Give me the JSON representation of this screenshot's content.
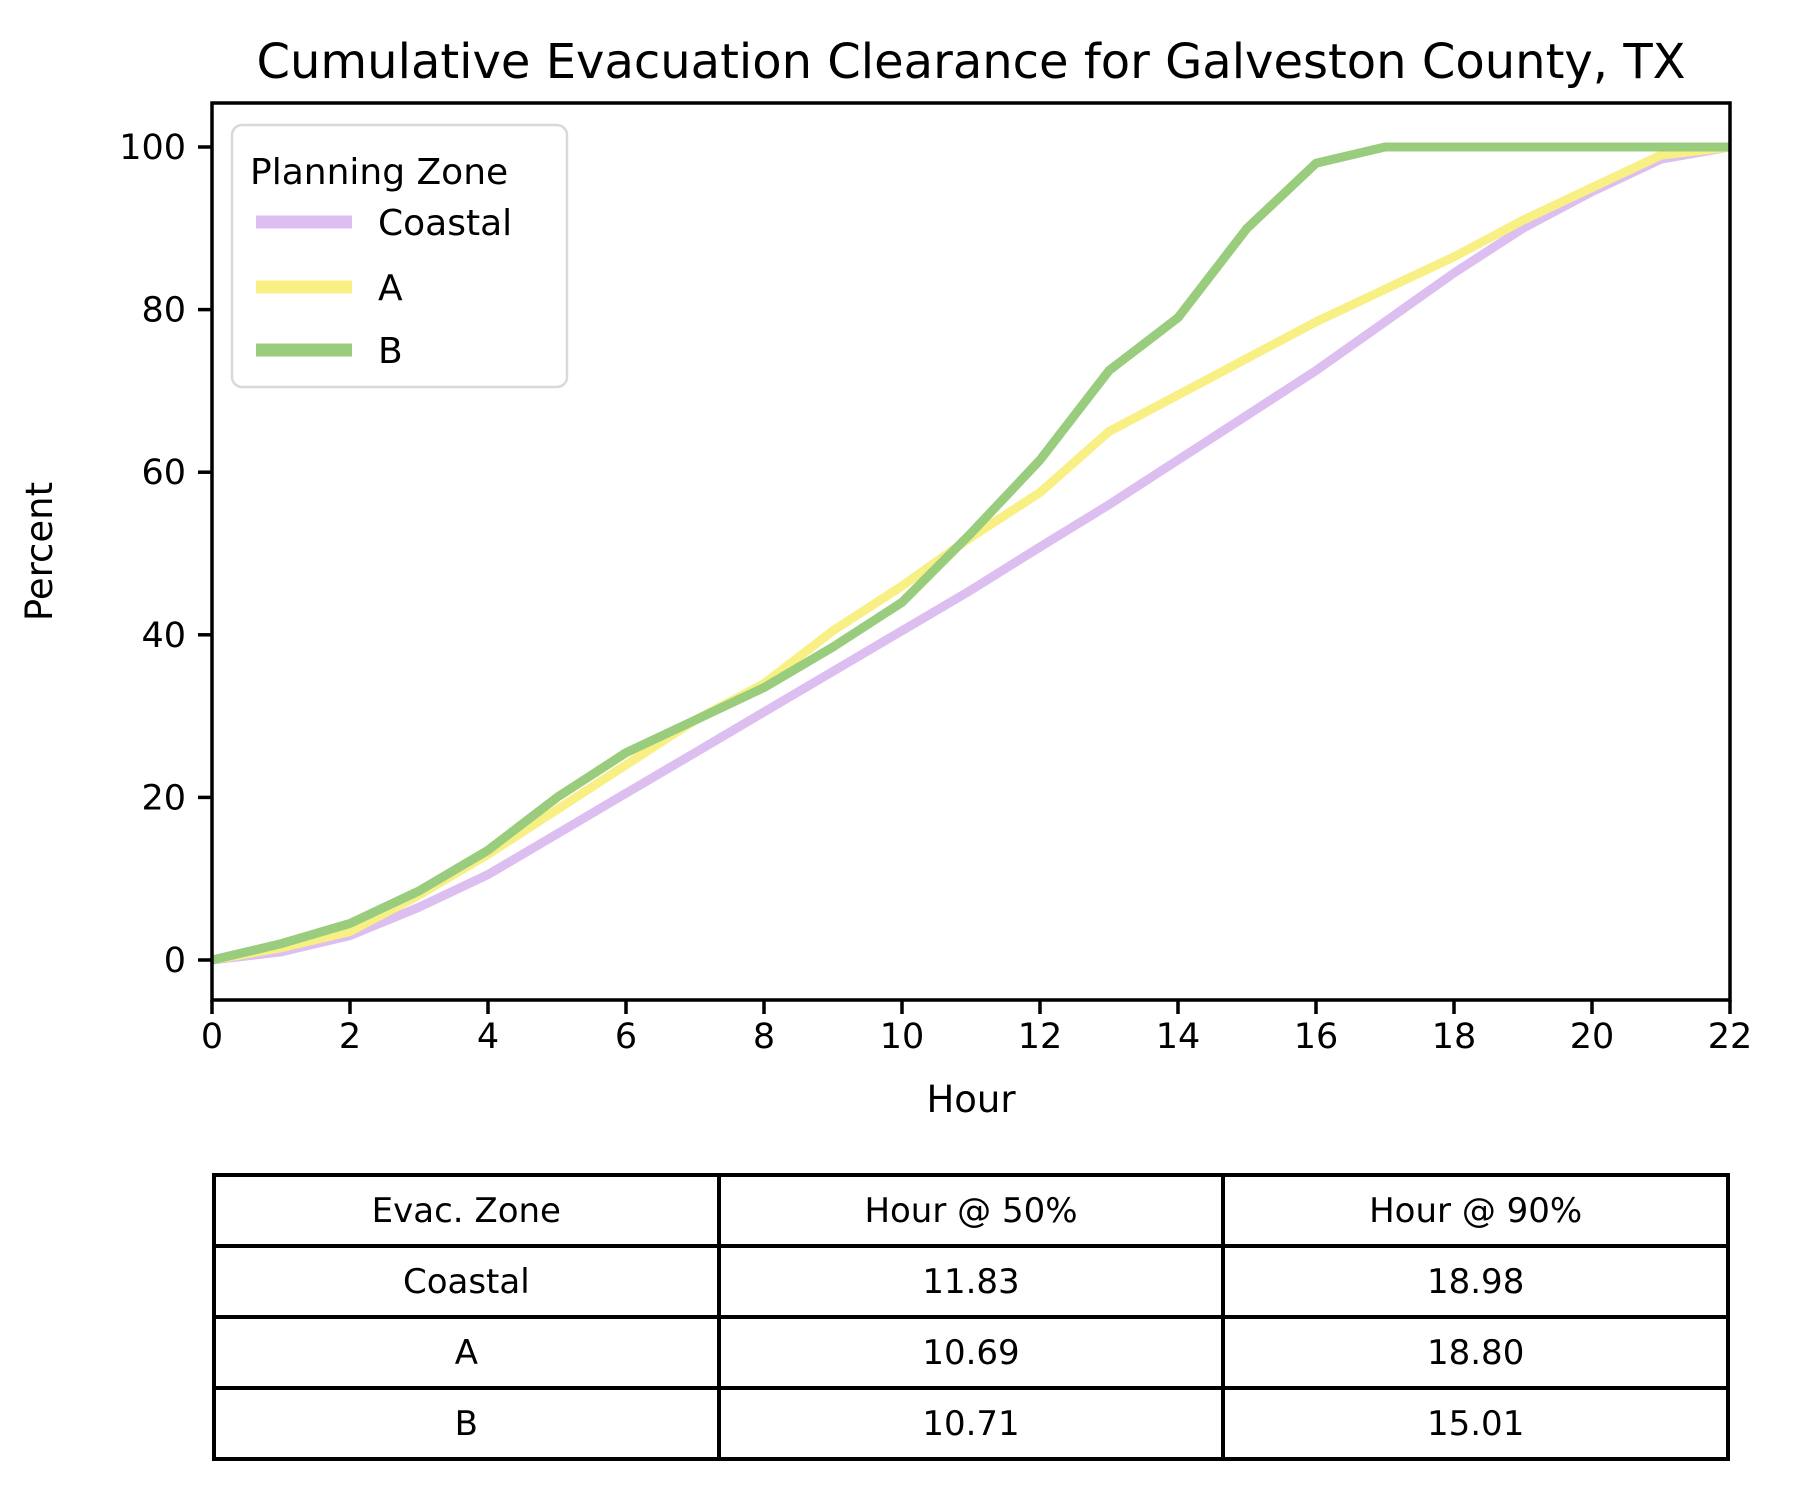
{
  "title": "Cumulative Evacuation Clearance for Galveston County, TX",
  "chart_data": {
    "type": "line",
    "title": "Cumulative Evacuation Clearance for Galveston County, TX",
    "xlabel": "Hour",
    "ylabel": "Percent",
    "xlim": [
      0,
      22
    ],
    "ylim": [
      0,
      100
    ],
    "x_ticks": [
      0,
      2,
      4,
      6,
      8,
      10,
      12,
      14,
      16,
      18,
      20,
      22
    ],
    "y_ticks": [
      0,
      20,
      40,
      60,
      80,
      100
    ],
    "grid": false,
    "legend": {
      "title": "Planning Zone",
      "position": "upper-left"
    },
    "x": [
      0,
      1,
      2,
      3,
      4,
      5,
      6,
      7,
      8,
      9,
      10,
      11,
      12,
      13,
      14,
      15,
      16,
      17,
      18,
      19,
      20,
      21,
      22
    ],
    "series": [
      {
        "name": "Coastal",
        "color": "#ddbef0",
        "values": [
          0,
          1,
          3,
          6.5,
          10.5,
          15.5,
          20.5,
          25.5,
          30.5,
          35.5,
          40.5,
          45.5,
          50.8,
          56,
          61.5,
          67,
          72.5,
          78.5,
          84.5,
          90,
          94.5,
          98.5,
          100
        ]
      },
      {
        "name": "A",
        "color": "#f8f084",
        "values": [
          0,
          1.5,
          3.5,
          8,
          13,
          18.5,
          24,
          29.5,
          34,
          40.5,
          46,
          52,
          57.5,
          65,
          69.5,
          74,
          78.5,
          82.5,
          86.5,
          91,
          95,
          99,
          100
        ]
      },
      {
        "name": "B",
        "color": "#99cc7d",
        "values": [
          0,
          2,
          4.5,
          8.5,
          13.5,
          20,
          25.5,
          29.5,
          33.5,
          38.5,
          44,
          52.5,
          61.5,
          72.5,
          79,
          90,
          98,
          100,
          100,
          100,
          100,
          100,
          100
        ]
      }
    ]
  },
  "table": {
    "headers": [
      "Evac. Zone",
      "Hour @ 50%",
      "Hour @ 90%"
    ],
    "rows": [
      {
        "zone": "Coastal",
        "h50": "11.83",
        "h90": "18.98"
      },
      {
        "zone": "A",
        "h50": "10.69",
        "h90": "18.80"
      },
      {
        "zone": "B",
        "h50": "10.71",
        "h90": "15.01"
      }
    ]
  }
}
